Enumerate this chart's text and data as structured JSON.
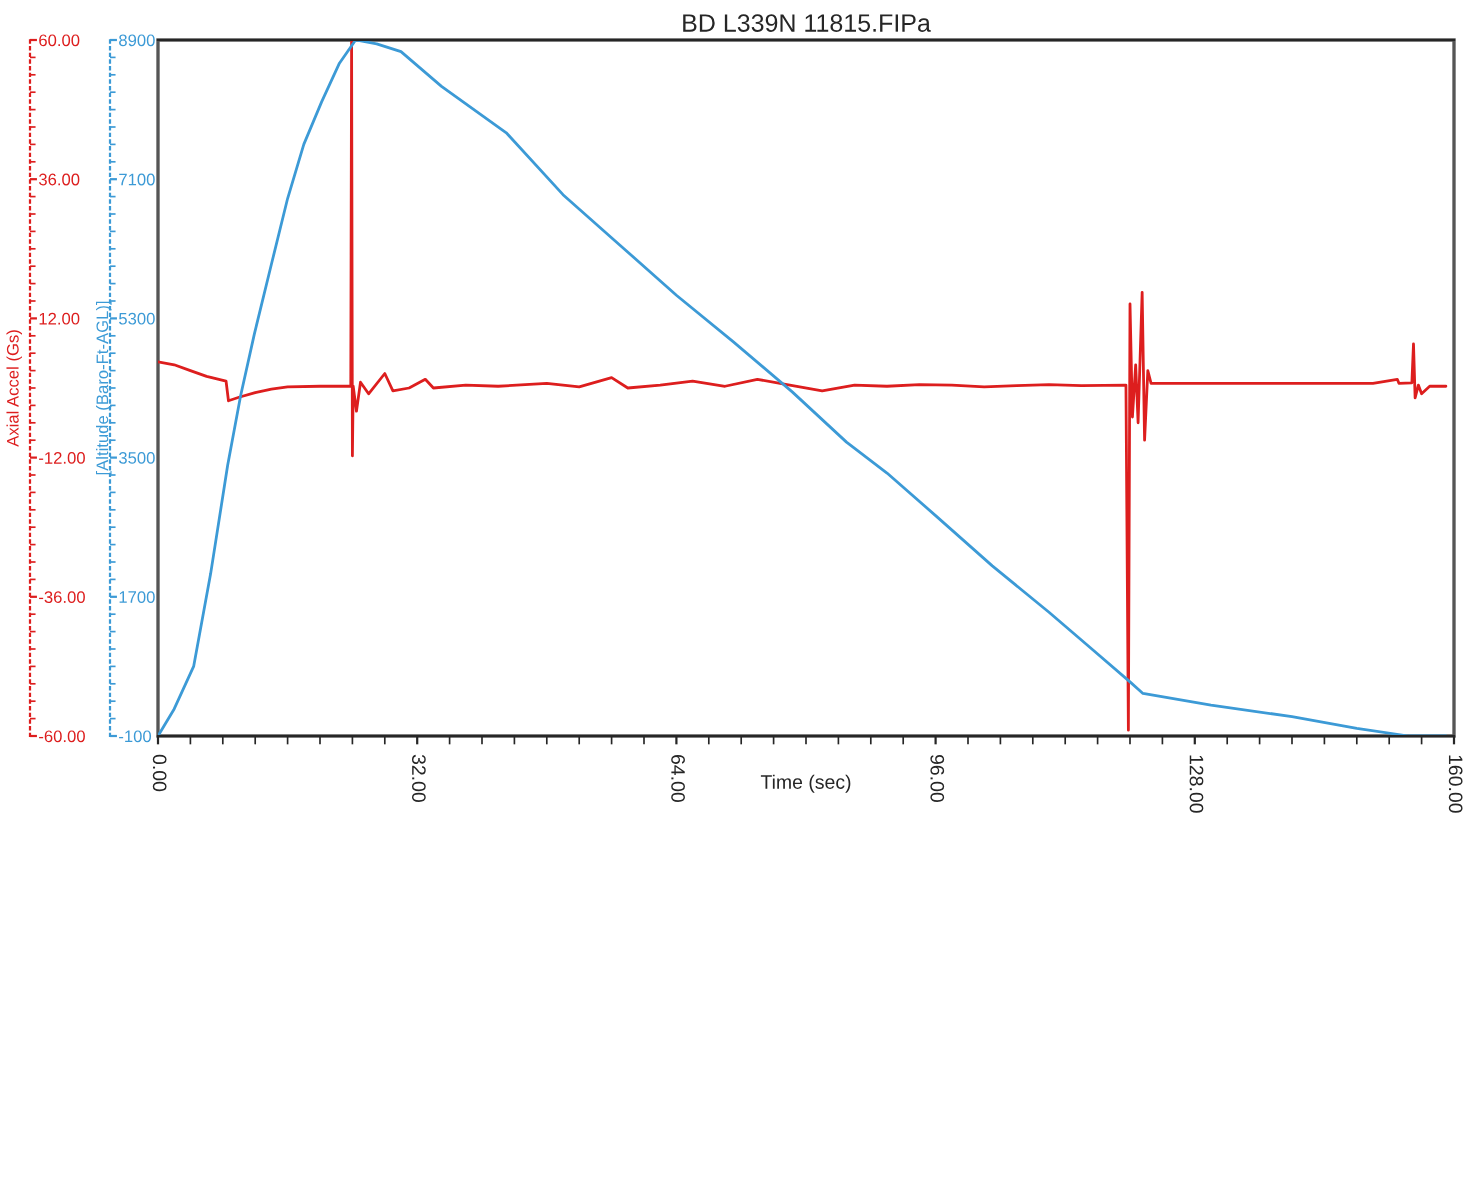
{
  "chart_data": {
    "type": "line",
    "title": "BD L339N 11815.FIPa",
    "xlabel": "Time (sec)",
    "ylabel": "Axial Accel (Gs)",
    "y2label": "[Altitude (Baro-Ft-AGL)]",
    "xlim": [
      0,
      160
    ],
    "xticks": [
      {
        "value": 0,
        "label": "0.00"
      },
      {
        "value": 32,
        "label": "32.00"
      },
      {
        "value": 64,
        "label": "64.00"
      },
      {
        "value": 96,
        "label": "96.00"
      },
      {
        "value": 128,
        "label": "128.00"
      },
      {
        "value": 160,
        "label": "160.00"
      }
    ],
    "ylim": [
      -60,
      60
    ],
    "yticks": [
      {
        "value": -60,
        "label": "-60.00"
      },
      {
        "value": -36,
        "label": "-36.00"
      },
      {
        "value": -12,
        "label": "-12.00"
      },
      {
        "value": 12,
        "label": "12.00"
      },
      {
        "value": 36,
        "label": "36.00"
      },
      {
        "value": 60,
        "label": "60.00"
      }
    ],
    "y2lim": [
      -100,
      8900
    ],
    "y2ticks": [
      -100,
      1700,
      3500,
      5300,
      7100,
      8900
    ],
    "grid": false,
    "legend": false,
    "marker": "none",
    "line_style": "solid",
    "series": [
      {
        "axis": "y2",
        "color": "#3c9ad6",
        "x": [
          0,
          2,
          4.4,
          6.5,
          8.6,
          10.2,
          11.9,
          14,
          16,
          18,
          20.2,
          22.4,
          24.4,
          27,
          30,
          35,
          43,
          50,
          57,
          64,
          71,
          78.3,
          85,
          90,
          96,
          103,
          110,
          115,
          120,
          121.6,
          130,
          140,
          148,
          154.4,
          159
        ],
        "values": [
          -100,
          250,
          800,
          2000,
          3400,
          4300,
          5100,
          6000,
          6850,
          7550,
          8100,
          8600,
          8900,
          8850,
          8750,
          8300,
          7700,
          6900,
          6250,
          5600,
          5000,
          4350,
          3700,
          3300,
          2750,
          2100,
          1500,
          1050,
          600,
          450,
          300,
          150,
          0,
          -100,
          -100
        ]
      },
      {
        "axis": "y",
        "color": "#dd1e1e",
        "x": [
          0,
          2,
          4,
          6,
          8.4,
          8.7,
          10,
          12,
          14,
          16,
          20,
          23.8,
          23.9,
          24.0,
          24.1,
          24.5,
          25,
          26,
          28,
          29,
          31,
          33,
          34,
          38,
          42,
          48,
          52,
          56,
          58,
          62,
          66,
          70,
          74,
          78,
          82,
          86,
          90,
          94,
          98,
          102,
          106,
          110,
          114,
          119.5,
          119.8,
          120.0,
          120.3,
          120.7,
          121.0,
          121.5,
          121.8,
          122.2,
          122.6,
          126,
          140,
          150,
          153,
          153.2,
          154.8,
          155.0,
          155.2,
          155.6,
          156,
          157,
          159
        ],
        "values": [
          4.5,
          4.0,
          3.0,
          2.0,
          1.2,
          -2.2,
          -1.6,
          -0.8,
          -0.2,
          0.2,
          0.3,
          0.3,
          60,
          -11.7,
          0.3,
          -4,
          1,
          -1,
          2.5,
          -0.5,
          0,
          1.5,
          0,
          0.5,
          0.3,
          0.8,
          0.2,
          1.8,
          0,
          0.5,
          1.2,
          0.3,
          1.5,
          0.5,
          -0.5,
          0.5,
          0.3,
          0.6,
          0.5,
          0.2,
          0.4,
          0.6,
          0.4,
          0.5,
          -59,
          14.5,
          -5,
          4,
          -6,
          16.5,
          -9,
          3,
          0.8,
          0.8,
          0.8,
          0.8,
          1.5,
          0.8,
          0.9,
          7.6,
          -1.7,
          0.5,
          -1,
          0.3,
          0.3
        ]
      }
    ]
  }
}
